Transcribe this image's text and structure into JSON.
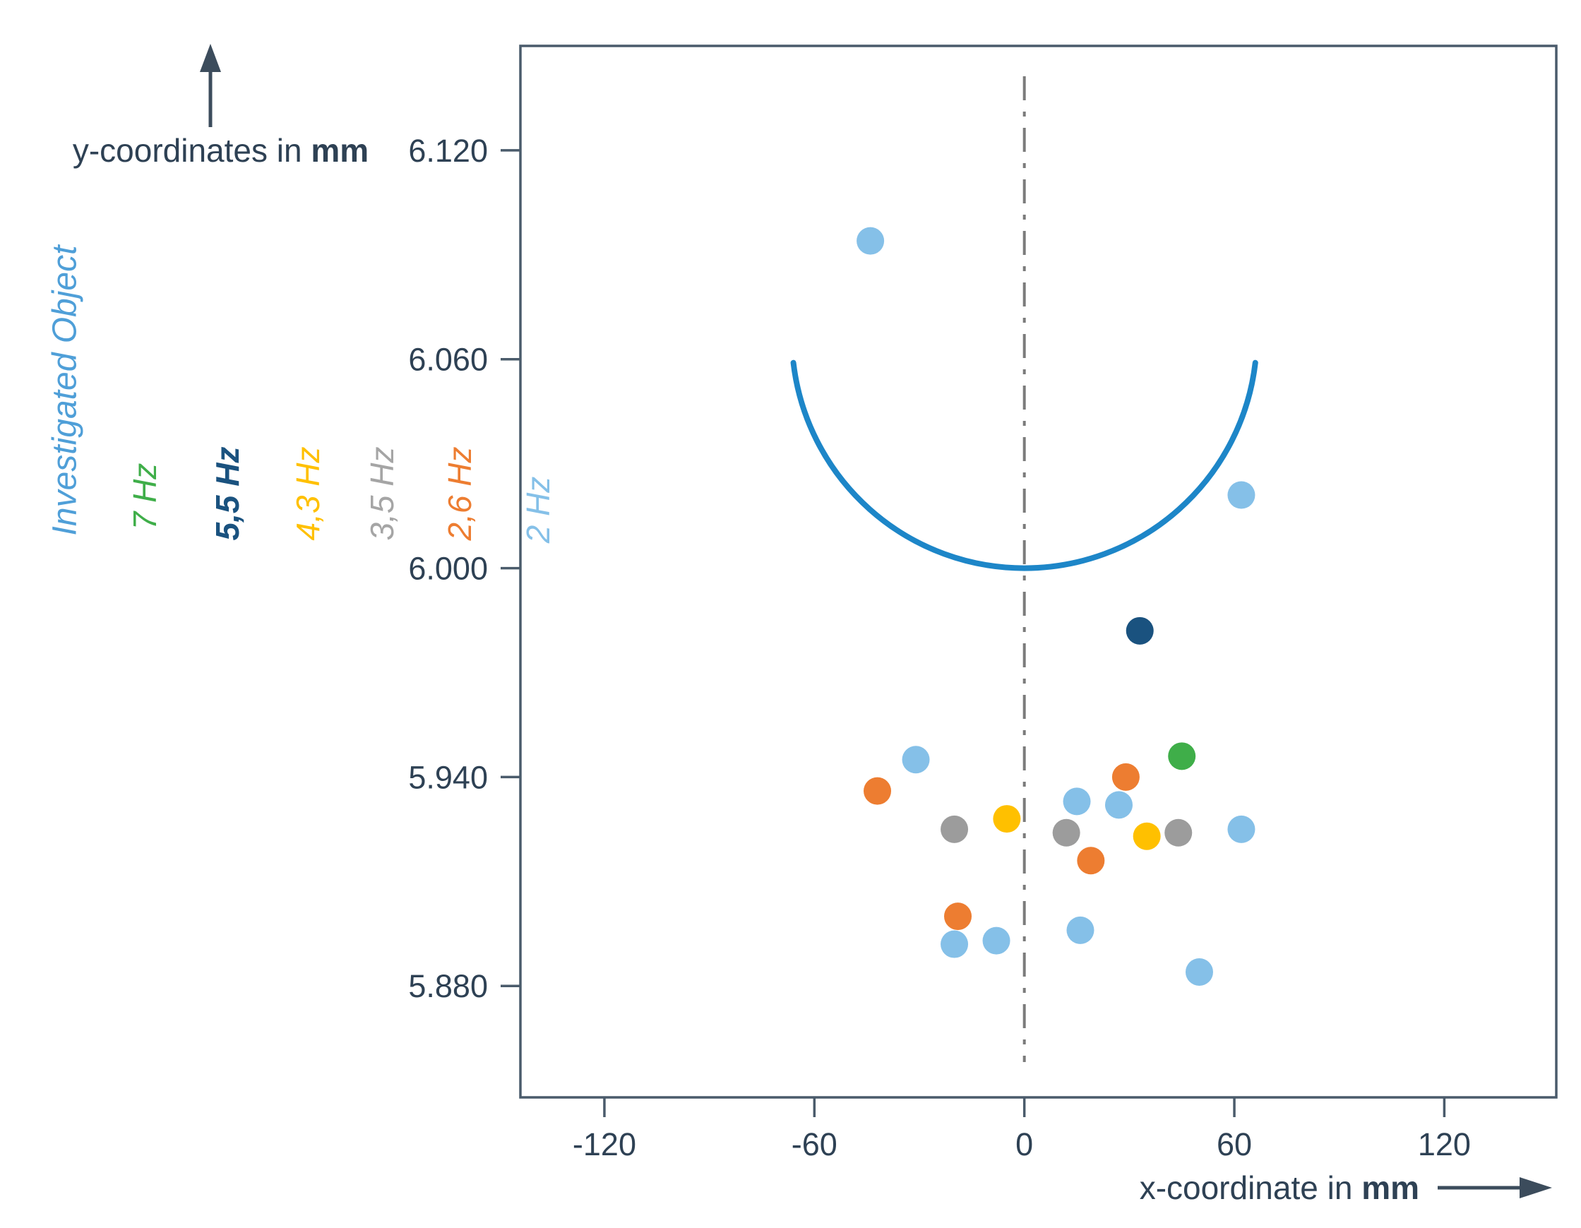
{
  "y_axis": {
    "title_prefix": "y-coordinates in ",
    "title_unit": "mm"
  },
  "x_axis": {
    "title_prefix": "x-coordinate in ",
    "title_unit": "mm"
  },
  "legend": {
    "object_label": "Investigated Object",
    "object_color": "#4f9fd8",
    "items": [
      {
        "label": "7 Hz",
        "color": "#3fae49"
      },
      {
        "label": "5,5 Hz",
        "color": "#1a527f"
      },
      {
        "label": "4,3 Hz",
        "color": "#ffc000"
      },
      {
        "label": "3,5 Hz",
        "color": "#a5a5a5"
      },
      {
        "label": "2,6 Hz",
        "color": "#ed7d31"
      },
      {
        "label": "2 Hz",
        "color": "#85c0e8"
      }
    ]
  },
  "chart_data": {
    "type": "scatter",
    "title": "",
    "xlabel": "x-coordinate in mm",
    "ylabel": "y-coordinates in mm",
    "grid": false,
    "xlim": [
      -144,
      152
    ],
    "ylim": [
      5.848,
      6.15
    ],
    "x_ticks": [
      {
        "value": -120,
        "label": "-120"
      },
      {
        "value": -60,
        "label": "-60"
      },
      {
        "value": 0,
        "label": "0"
      },
      {
        "value": 60,
        "label": "60"
      },
      {
        "value": 120,
        "label": "120"
      }
    ],
    "y_ticks": [
      {
        "value": 6.12,
        "label": "6.120"
      },
      {
        "value": 6.06,
        "label": "6.060"
      },
      {
        "value": 6.0,
        "label": "6.000"
      },
      {
        "value": 5.94,
        "label": "5.940"
      },
      {
        "value": 5.88,
        "label": "5.880"
      }
    ],
    "center_line_x": 0,
    "object_arc": {
      "name": "Investigated Object",
      "color": "#1d86c8",
      "x_left": -66,
      "x_right": 66,
      "y_at_ends": 6.059,
      "x_bottom": 0,
      "y_at_bottom": 6.0
    },
    "series": [
      {
        "name": "7 Hz",
        "color": "#3fae49",
        "points": [
          [
            45,
            5.946
          ]
        ]
      },
      {
        "name": "5,5 Hz",
        "color": "#1a527f",
        "points": [
          [
            33,
            5.982
          ]
        ]
      },
      {
        "name": "4,3 Hz",
        "color": "#ffc000",
        "points": [
          [
            -5,
            5.928
          ],
          [
            35,
            5.923
          ]
        ]
      },
      {
        "name": "3,5 Hz",
        "color": "#9c9c9c",
        "points": [
          [
            -20,
            5.925
          ],
          [
            12,
            5.924
          ],
          [
            44,
            5.924
          ]
        ]
      },
      {
        "name": "2,6 Hz",
        "color": "#ed7d31",
        "points": [
          [
            -42,
            5.936
          ],
          [
            29,
            5.94
          ],
          [
            19,
            5.916
          ],
          [
            -19,
            5.9
          ]
        ]
      },
      {
        "name": "2 Hz",
        "color": "#85c0e8",
        "points": [
          [
            -44,
            6.094
          ],
          [
            62,
            6.021
          ],
          [
            -31,
            5.945
          ],
          [
            15,
            5.933
          ],
          [
            27,
            5.932
          ],
          [
            62,
            5.925
          ],
          [
            -20,
            5.892
          ],
          [
            -8,
            5.893
          ],
          [
            16,
            5.896
          ],
          [
            50,
            5.884
          ]
        ]
      }
    ]
  }
}
